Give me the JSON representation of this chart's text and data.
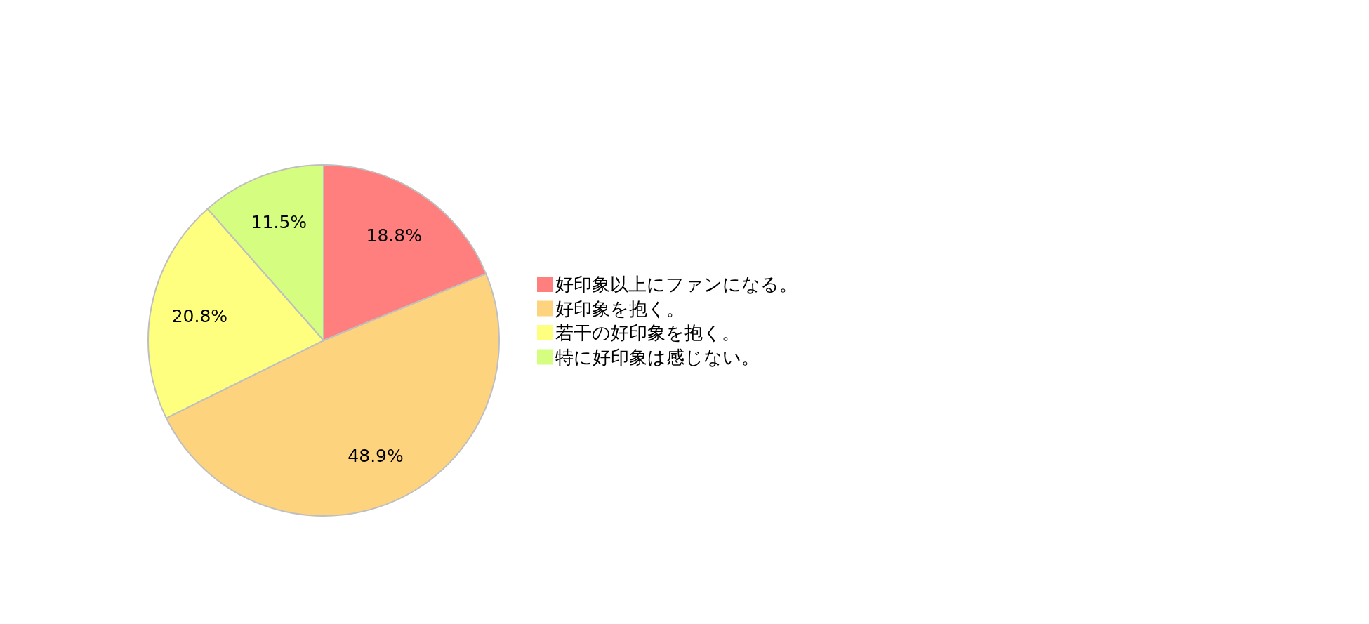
{
  "chart_data": {
    "type": "pie",
    "categories": [
      "好印象以上にファンになる。",
      "好印象を抱く。",
      "若干の好印象を抱く。",
      "特に好印象は感じない。"
    ],
    "values": [
      18.8,
      48.9,
      20.8,
      11.5
    ],
    "value_labels": [
      "18.8%",
      "48.9%",
      "20.8%",
      "11.5%"
    ],
    "colors": [
      "#ff7f7f",
      "#fdd37d",
      "#ffff7f",
      "#d5fd7f"
    ],
    "legend": "right"
  }
}
